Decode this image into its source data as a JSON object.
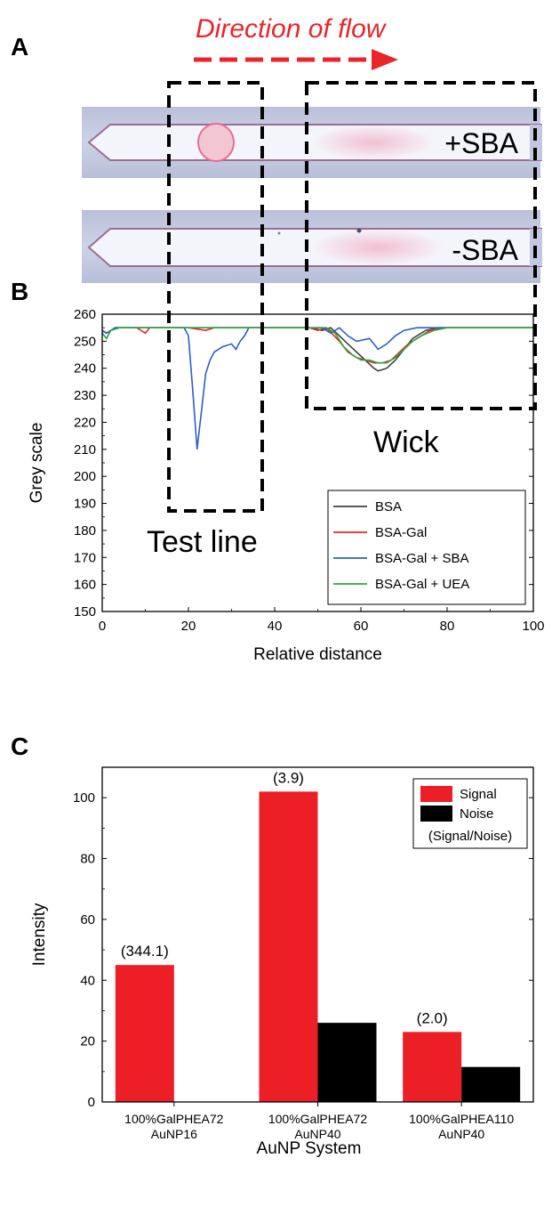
{
  "panel_a": {
    "letter": "A",
    "flow_title": "Direction of flow",
    "strips": [
      {
        "label": "+SBA",
        "test_spot": true
      },
      {
        "label": "-SBA",
        "test_spot": false
      }
    ],
    "colors": {
      "flow": "#e8262a",
      "strip_bg": "#c9cfe2",
      "strip_edge": "#9a6f90",
      "spot": "#e56d92"
    }
  },
  "panel_b": {
    "letter": "B",
    "annotations": {
      "test_line": "Test line",
      "wick": "Wick"
    }
  },
  "panel_c": {
    "letter": "C",
    "ratio_caption": "(Signal/Noise)"
  },
  "chart_data": [
    {
      "type": "line",
      "xlabel": "Relative distance",
      "ylabel": "Grey scale",
      "xlim": [
        0,
        100
      ],
      "ylim": [
        150,
        260
      ],
      "xticks": [
        0,
        20,
        40,
        60,
        80,
        100
      ],
      "yticks": [
        150,
        160,
        170,
        180,
        190,
        200,
        210,
        220,
        230,
        240,
        250,
        260
      ],
      "legend_position": "bottom-right",
      "series": [
        {
          "name": "BSA",
          "color": "#404040",
          "points": [
            [
              0,
              254
            ],
            [
              1,
              253
            ],
            [
              3,
              255
            ],
            [
              10,
              255
            ],
            [
              20,
              255
            ],
            [
              30,
              255
            ],
            [
              40,
              255
            ],
            [
              48,
              255
            ],
            [
              51,
              254
            ],
            [
              53,
              255
            ],
            [
              55,
              252
            ],
            [
              57,
              249
            ],
            [
              59,
              246
            ],
            [
              61,
              243
            ],
            [
              63,
              240
            ],
            [
              64,
              239
            ],
            [
              66,
              240
            ],
            [
              68,
              243
            ],
            [
              70,
              247
            ],
            [
              72,
              251
            ],
            [
              75,
              254
            ],
            [
              78,
              255
            ],
            [
              85,
              255
            ],
            [
              100,
              255
            ]
          ]
        },
        {
          "name": "BSA-Gal",
          "color": "#e8262a",
          "points": [
            [
              0,
              254
            ],
            [
              1,
              253
            ],
            [
              3,
              255
            ],
            [
              8,
              255
            ],
            [
              10,
              253
            ],
            [
              11,
              255
            ],
            [
              20,
              255
            ],
            [
              24,
              254
            ],
            [
              26,
              255
            ],
            [
              40,
              255
            ],
            [
              48,
              255
            ],
            [
              50,
              254
            ],
            [
              52,
              255
            ],
            [
              55,
              250
            ],
            [
              57,
              246
            ],
            [
              59,
              244
            ],
            [
              61,
              243
            ],
            [
              63,
              242
            ],
            [
              65,
              242
            ],
            [
              67,
              243
            ],
            [
              69,
              246
            ],
            [
              71,
              249
            ],
            [
              73,
              251
            ],
            [
              76,
              254
            ],
            [
              79,
              255
            ],
            [
              100,
              255
            ]
          ]
        },
        {
          "name": "BSA-Gal + SBA",
          "color": "#2c5fc7",
          "points": [
            [
              0,
              254
            ],
            [
              1,
              253
            ],
            [
              3,
              255
            ],
            [
              19,
              255
            ],
            [
              20,
              252
            ],
            [
              21,
              232
            ],
            [
              22,
              210
            ],
            [
              23,
              224
            ],
            [
              24,
              238
            ],
            [
              25,
              243
            ],
            [
              26,
              246
            ],
            [
              28,
              248
            ],
            [
              30,
              249
            ],
            [
              31,
              247
            ],
            [
              32,
              250
            ],
            [
              33,
              252
            ],
            [
              34,
              255
            ],
            [
              40,
              255
            ],
            [
              48,
              255
            ],
            [
              51,
              255
            ],
            [
              53,
              253
            ],
            [
              55,
              255
            ],
            [
              57,
              252
            ],
            [
              59,
              250
            ],
            [
              62,
              251
            ],
            [
              64,
              247
            ],
            [
              66,
              249
            ],
            [
              68,
              252
            ],
            [
              70,
              254
            ],
            [
              73,
              255
            ],
            [
              100,
              255
            ]
          ]
        },
        {
          "name": "BSA-Gal + UEA",
          "color": "#2ca845",
          "points": [
            [
              0,
              253
            ],
            [
              1,
              251
            ],
            [
              2,
              254
            ],
            [
              4,
              255
            ],
            [
              20,
              255
            ],
            [
              40,
              255
            ],
            [
              48,
              255
            ],
            [
              50,
              255
            ],
            [
              52,
              255
            ],
            [
              54,
              253
            ],
            [
              56,
              248
            ],
            [
              58,
              245
            ],
            [
              60,
              243
            ],
            [
              62,
              243
            ],
            [
              64,
              242
            ],
            [
              66,
              242
            ],
            [
              68,
              244
            ],
            [
              70,
              247
            ],
            [
              72,
              250
            ],
            [
              74,
              252
            ],
            [
              77,
              254
            ],
            [
              80,
              255
            ],
            [
              100,
              255
            ]
          ]
        }
      ]
    },
    {
      "type": "bar",
      "xlabel": "AuNP System",
      "ylabel": "Intensity",
      "ylim": [
        0,
        110
      ],
      "yticks": [
        0,
        20,
        40,
        60,
        80,
        100
      ],
      "legend_position": "top-right",
      "categories": [
        [
          "100%GalPHEA72",
          "AuNP16"
        ],
        [
          "100%GalPHEA72",
          "AuNP40"
        ],
        [
          "100%GalPHEA110",
          "AuNP40"
        ]
      ],
      "series": [
        {
          "name": "Signal",
          "color": "#ec1f26",
          "values": [
            45,
            102,
            23
          ]
        },
        {
          "name": "Noise",
          "color": "#000000",
          "values": [
            0,
            26,
            11.5
          ]
        }
      ],
      "ratio_labels": [
        "(344.1)",
        "(3.9)",
        "(2.0)"
      ]
    }
  ]
}
